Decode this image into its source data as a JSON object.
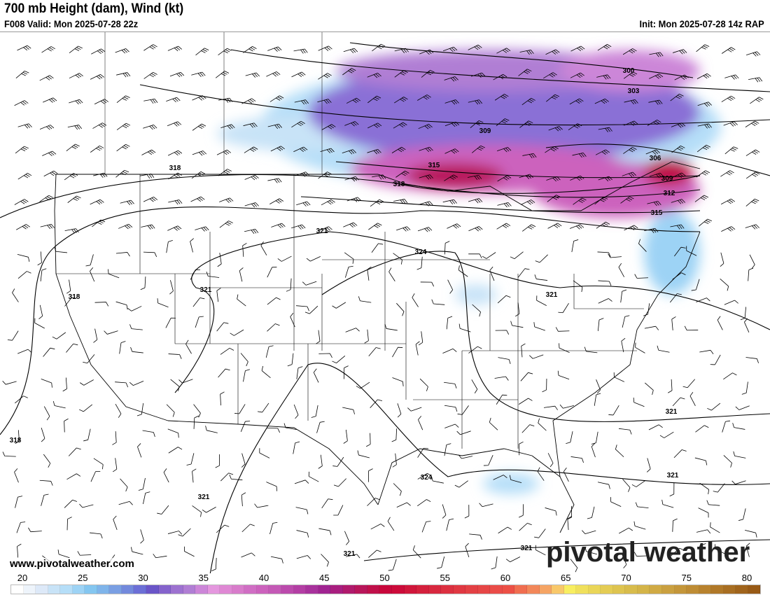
{
  "header": {
    "title": "700 mb Height (dam), Wind (kt)",
    "valid": "F008 Valid: Mon 2025-07-28 22z",
    "init": "Init: Mon 2025-07-28 14z RAP"
  },
  "footer": {
    "website": "www.pivotalweather.com",
    "logo": "pivotal weather"
  },
  "colorbar": {
    "ticks": [
      "20",
      "25",
      "30",
      "35",
      "40",
      "45",
      "50",
      "55",
      "60",
      "65",
      "70",
      "75",
      "80"
    ],
    "colors": [
      "#ffffff",
      "#eef4fb",
      "#dde9f8",
      "#c8e3f7",
      "#b5def8",
      "#9dd3f5",
      "#84c6f0",
      "#7fb4ea",
      "#7a9fe3",
      "#7389dc",
      "#6c6fd6",
      "#6a55c8",
      "#8563cc",
      "#9d72d0",
      "#b07ed4",
      "#cc86d8",
      "#e497de",
      "#df88d4",
      "#d87ccb",
      "#d06ec4",
      "#cc62bd",
      "#c459b6",
      "#bb4aac",
      "#b33ea4",
      "#a8329c",
      "#a02491",
      "#a81e7f",
      "#b01a6c",
      "#b8165a",
      "#c0104a",
      "#c8073b",
      "#cc0b3a",
      "#d0163b",
      "#d4203d",
      "#d8283f",
      "#dc3040",
      "#e03842",
      "#e34044",
      "#e64646",
      "#ea4c48",
      "#ec5046",
      "#f06e50",
      "#f2875a",
      "#f5a464",
      "#f8c86a",
      "#f8ee60",
      "#f0e05c",
      "#ead658",
      "#e4cc54",
      "#dec450",
      "#d8bc4c",
      "#d4b448",
      "#d0aa44",
      "#caa040",
      "#c4963a",
      "#be8c34",
      "#b8822e",
      "#b07828",
      "#a86e22",
      "#a0641c",
      "#985a16"
    ]
  },
  "contour_labels": [
    "300",
    "303",
    "309",
    "306",
    "309",
    "312",
    "315",
    "315",
    "318",
    "318",
    "321",
    "324",
    "321",
    "318",
    "318",
    "321",
    "321",
    "324",
    "321",
    "321",
    "321",
    "321"
  ]
}
